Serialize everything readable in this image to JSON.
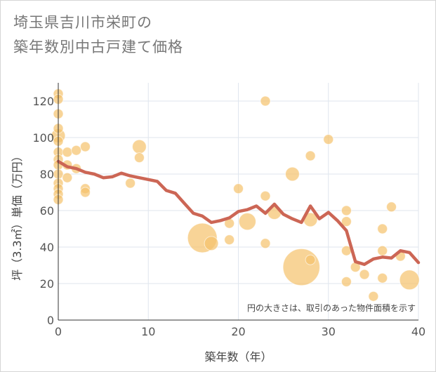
{
  "title_lines": [
    "埼玉県吉川市栄町の",
    "築年数別中古戸建て価格"
  ],
  "chart_data": {
    "type": "scatter",
    "title": "埼玉県吉川市栄町の築年数別中古戸建て価格",
    "xlabel": "築年数（年）",
    "ylabel": "坪（3.3㎡）単価（万円）",
    "xlim": [
      0,
      40
    ],
    "ylim": [
      0,
      130
    ],
    "x_ticks": [
      0,
      10,
      20,
      30,
      40
    ],
    "y_ticks": [
      0,
      20,
      40,
      60,
      80,
      100,
      120
    ],
    "grid": true,
    "note": "円の大きさは、取引のあった物件面積を示す",
    "colors": {
      "bubble": "#f5c26b",
      "line": "#cc6655",
      "grid": "#dfe6ee"
    },
    "points": [
      {
        "x": 0,
        "y": 124,
        "s": 1
      },
      {
        "x": 0,
        "y": 121,
        "s": 1
      },
      {
        "x": 0,
        "y": 113,
        "s": 1
      },
      {
        "x": 0,
        "y": 105,
        "s": 1
      },
      {
        "x": 0,
        "y": 101,
        "s": 2
      },
      {
        "x": 0,
        "y": 98,
        "s": 1
      },
      {
        "x": 0,
        "y": 92,
        "s": 1
      },
      {
        "x": 0,
        "y": 88,
        "s": 1
      },
      {
        "x": 0,
        "y": 85,
        "s": 1
      },
      {
        "x": 0,
        "y": 80,
        "s": 1
      },
      {
        "x": 0,
        "y": 75,
        "s": 1
      },
      {
        "x": 0,
        "y": 72,
        "s": 1
      },
      {
        "x": 0,
        "y": 69,
        "s": 1
      },
      {
        "x": 0,
        "y": 66,
        "s": 1
      },
      {
        "x": 1,
        "y": 92,
        "s": 1
      },
      {
        "x": 1,
        "y": 85,
        "s": 1
      },
      {
        "x": 1,
        "y": 78,
        "s": 1
      },
      {
        "x": 2,
        "y": 93,
        "s": 1
      },
      {
        "x": 2,
        "y": 83,
        "s": 1
      },
      {
        "x": 3,
        "y": 95,
        "s": 1
      },
      {
        "x": 3,
        "y": 72,
        "s": 1
      },
      {
        "x": 3,
        "y": 70,
        "s": 1
      },
      {
        "x": 8,
        "y": 75,
        "s": 1
      },
      {
        "x": 9,
        "y": 95,
        "s": 2
      },
      {
        "x": 9,
        "y": 89,
        "s": 1
      },
      {
        "x": 16,
        "y": 45,
        "s": 9
      },
      {
        "x": 17,
        "y": 42,
        "s": 2
      },
      {
        "x": 19,
        "y": 53,
        "s": 1
      },
      {
        "x": 19,
        "y": 44,
        "s": 1
      },
      {
        "x": 20,
        "y": 72,
        "s": 1
      },
      {
        "x": 21,
        "y": 54,
        "s": 3
      },
      {
        "x": 23,
        "y": 120,
        "s": 1
      },
      {
        "x": 23,
        "y": 68,
        "s": 1
      },
      {
        "x": 23,
        "y": 42,
        "s": 1
      },
      {
        "x": 24,
        "y": 59,
        "s": 2
      },
      {
        "x": 26,
        "y": 80,
        "s": 2
      },
      {
        "x": 27,
        "y": 29,
        "s": 14
      },
      {
        "x": 28,
        "y": 90,
        "s": 1
      },
      {
        "x": 28,
        "y": 55,
        "s": 2
      },
      {
        "x": 28,
        "y": 33,
        "s": 1
      },
      {
        "x": 30,
        "y": 99,
        "s": 1
      },
      {
        "x": 32,
        "y": 60,
        "s": 1
      },
      {
        "x": 32,
        "y": 54,
        "s": 1
      },
      {
        "x": 32,
        "y": 38,
        "s": 1
      },
      {
        "x": 32,
        "y": 21,
        "s": 1
      },
      {
        "x": 33,
        "y": 29,
        "s": 1
      },
      {
        "x": 34,
        "y": 25,
        "s": 1
      },
      {
        "x": 35,
        "y": 13,
        "s": 1
      },
      {
        "x": 36,
        "y": 50,
        "s": 1
      },
      {
        "x": 36,
        "y": 38,
        "s": 1
      },
      {
        "x": 36,
        "y": 23,
        "s": 1
      },
      {
        "x": 37,
        "y": 62,
        "s": 1
      },
      {
        "x": 38,
        "y": 35,
        "s": 1
      },
      {
        "x": 39,
        "y": 22,
        "s": 4
      }
    ],
    "trend": {
      "x": [
        0,
        1,
        2,
        3,
        4,
        5,
        6,
        7,
        8,
        9,
        10,
        11,
        12,
        13,
        14,
        15,
        16,
        17,
        18,
        19,
        20,
        21,
        22,
        23,
        24,
        25,
        26,
        27,
        28,
        29,
        30,
        31,
        32,
        33,
        34,
        35,
        36,
        37,
        38,
        39,
        40
      ],
      "y": [
        87,
        84,
        83,
        81,
        80,
        78,
        78.5,
        80.5,
        79,
        78,
        77,
        76,
        71,
        69.5,
        64,
        58.5,
        57,
        53.5,
        54.5,
        56,
        59.5,
        60.5,
        62.5,
        58.5,
        63.5,
        58,
        55.5,
        53.5,
        62.5,
        55.5,
        59,
        54.5,
        49,
        32,
        30.5,
        33.5,
        34.5,
        34,
        38,
        37,
        31.5
      ]
    }
  }
}
